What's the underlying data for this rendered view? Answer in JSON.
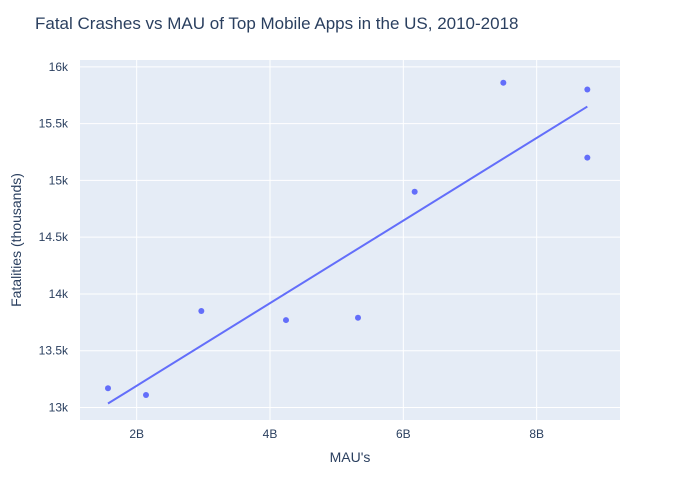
{
  "chart_data": {
    "type": "scatter",
    "title": "Fatal Crashes vs MAU of Top Mobile Apps in the US, 2010-2018",
    "xlabel": "MAU's",
    "ylabel": "Fatalities (thousands)",
    "xlim": [
      1.15,
      9.25
    ],
    "ylim": [
      12890,
      16060
    ],
    "x_ticks": [
      {
        "value": 2,
        "label": "2B"
      },
      {
        "value": 4,
        "label": "4B"
      },
      {
        "value": 6,
        "label": "6B"
      },
      {
        "value": 8,
        "label": "8B"
      }
    ],
    "y_ticks": [
      {
        "value": 13000,
        "label": "13k"
      },
      {
        "value": 13500,
        "label": "13.5k"
      },
      {
        "value": 14000,
        "label": "14k"
      },
      {
        "value": 14500,
        "label": "14.5k"
      },
      {
        "value": 15000,
        "label": "15k"
      },
      {
        "value": 15500,
        "label": "15.5k"
      },
      {
        "value": 16000,
        "label": "16k"
      }
    ],
    "grid": true,
    "series": [
      {
        "type": "scatter",
        "x": [
          1.57,
          2.14,
          2.97,
          4.24,
          5.32,
          6.17,
          7.5,
          8.76,
          8.76
        ],
        "y": [
          13170,
          13110,
          13850,
          13770,
          13790,
          14900,
          15860,
          15800,
          15200
        ],
        "color": "#636efa"
      },
      {
        "type": "line",
        "x": [
          1.57,
          8.76
        ],
        "y": [
          13035,
          15650
        ],
        "color": "#636efa"
      }
    ],
    "colors": {
      "plot_bg": "#e5ecf6",
      "grid": "#ffffff",
      "text": "#2a3f5f"
    }
  }
}
